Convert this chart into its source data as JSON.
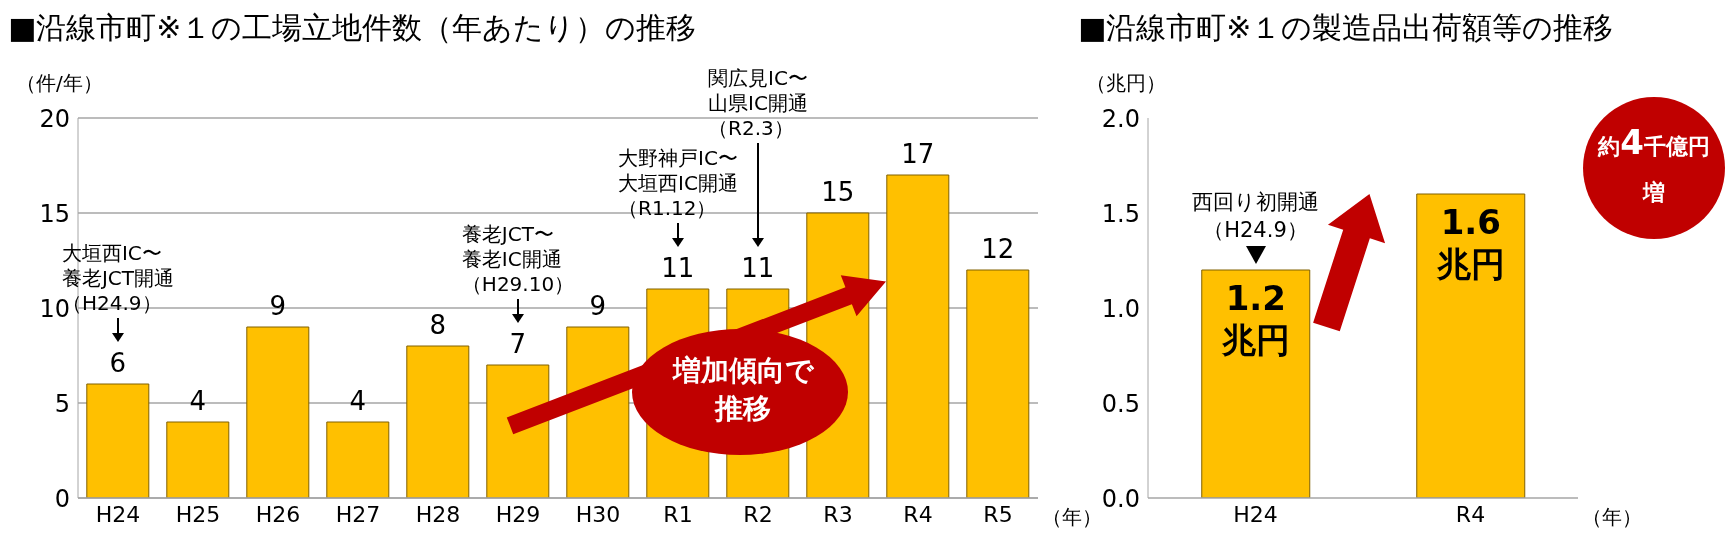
{
  "chart_data": [
    {
      "type": "bar",
      "title": "■沿線市町※１の工場立地件数（年あたり）の推移",
      "ylabel": "（件/年）",
      "xlabel": "（年）",
      "categories": [
        "H24",
        "H25",
        "H26",
        "H27",
        "H28",
        "H29",
        "H30",
        "R1",
        "R2",
        "R3",
        "R4",
        "R5"
      ],
      "values": [
        6,
        4,
        9,
        4,
        8,
        7,
        9,
        11,
        11,
        15,
        17,
        12
      ],
      "color": "#ffc000",
      "ylim": [
        0,
        20
      ],
      "yticks": [
        0,
        5,
        10,
        15,
        20
      ],
      "grid": "y",
      "data_labels": true,
      "annotations": [
        {
          "text": "大垣西IC〜養老JCT開通（H24.9）",
          "x": "H24"
        },
        {
          "text": "養老JCT〜養老IC開通（H29.10）",
          "x": "H29"
        },
        {
          "text": "大野神戸IC〜大垣西IC開通（R1.12）",
          "x": "R1"
        },
        {
          "text": "関広見IC〜山県IC開通（R2.3）",
          "x": "R2"
        },
        "増加傾向で推移"
      ]
    },
    {
      "type": "bar",
      "title": "■沿線市町※１の製造品出荷額等の推移",
      "ylabel": "（兆円）",
      "xlabel": "（年）",
      "categories": [
        "H24",
        "R4"
      ],
      "values": [
        1.2,
        1.6
      ],
      "color": "#ffc000",
      "ylim": [
        0,
        2.0
      ],
      "yticks": [
        {
          "value": 0,
          "label": "0.0"
        },
        {
          "value": 0.5,
          "label": "0.5"
        },
        {
          "value": 1,
          "label": "1.0"
        },
        {
          "value": 1.5,
          "label": "1.5"
        },
        {
          "value": 2,
          "label": "2.0"
        }
      ],
      "value_labels": [
        "1.2\n兆円",
        "1.6\n兆円"
      ],
      "annotations": [
        {
          "text": "西回り初開通（H24.9）",
          "x": "H24",
          "y": 1.2
        },
        "約4千億円増"
      ]
    }
  ]
}
